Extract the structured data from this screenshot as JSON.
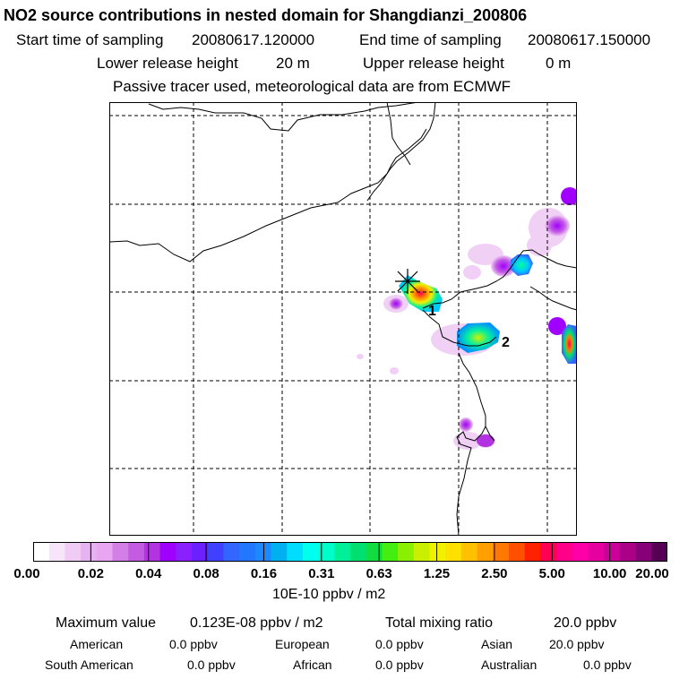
{
  "header": {
    "title": "NO2 source contributions in nested domain for Shangdianzi_200806",
    "start_label": "Start time of sampling",
    "start_value": "20080617.120000",
    "end_label": "End time of sampling",
    "end_value": "20080617.150000",
    "lower_label": "Lower release height",
    "lower_value": "20 m",
    "upper_label": "Upper release height",
    "upper_value": "0 m",
    "note": "Passive tracer used, meteorological data are from ECMWF"
  },
  "map": {
    "point_labels": [
      "1",
      "2"
    ],
    "receptor_marker": "star-cross-icon"
  },
  "colorbar": {
    "ticks": [
      "0.00",
      "0.02",
      "0.04",
      "0.08",
      "0.16",
      "0.31",
      "0.63",
      "1.25",
      "2.50",
      "5.00",
      "10.00",
      "20.00"
    ],
    "unit": "10E-10 ppbv / m2",
    "colors": [
      "#ffffff",
      "#f7e6fa",
      "#f0ccf5",
      "#e6b3f0",
      "#e8a6f0",
      "#d47fe8",
      "#c35ce3",
      "#b233e0",
      "#a000ff",
      "#8a1fff",
      "#6a20ff",
      "#4040ff",
      "#3366ff",
      "#2277ff",
      "#1d88ff",
      "#00b0f0",
      "#00ddff",
      "#00ffee",
      "#00ffc8",
      "#00f09a",
      "#00e070",
      "#10dd40",
      "#44ee10",
      "#88f000",
      "#c8f000",
      "#f0f000",
      "#ffe000",
      "#ffc000",
      "#ff9f00",
      "#ff7800",
      "#ff5000",
      "#ff2000",
      "#ff0055",
      "#ff0088",
      "#ff00a8",
      "#e600a0",
      "#cc0099",
      "#aa0088",
      "#880077",
      "#550055"
    ]
  },
  "stats": {
    "max_label": "Maximum value",
    "max_value": "0.123E-08 ppbv / m2",
    "total_label": "Total mixing ratio",
    "total_value": "20.0 ppbv",
    "regions": [
      {
        "name": "American",
        "value": "0.0 ppbv"
      },
      {
        "name": "European",
        "value": "0.0 ppbv"
      },
      {
        "name": "Asian",
        "value": "20.0 ppbv"
      },
      {
        "name": "South American",
        "value": "0.0 ppbv"
      },
      {
        "name": "African",
        "value": "0.0 ppbv"
      },
      {
        "name": "Australian",
        "value": "0.0 ppbv"
      }
    ]
  }
}
